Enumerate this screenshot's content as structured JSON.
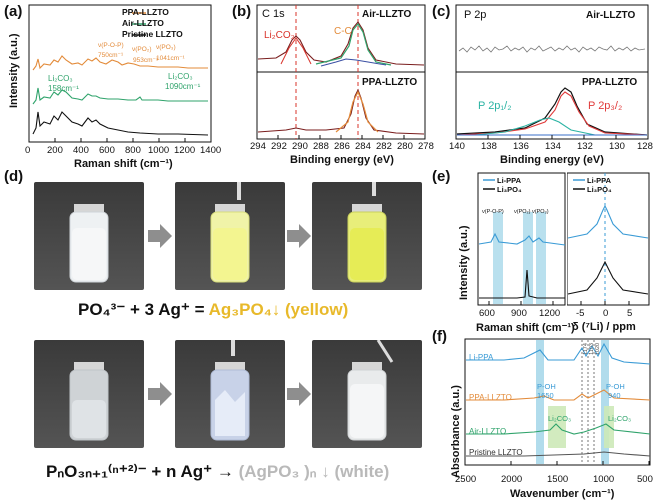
{
  "panel_labels": {
    "a": "(a)",
    "b": "(b)",
    "c": "(c)",
    "d": "(d)",
    "e": "(e)",
    "f": "(f)"
  },
  "colors": {
    "ppa": "#e38b3a",
    "air": "#2fa36b",
    "pristine": "#111111",
    "li_ppa": "#3a9bd6",
    "dash_red": "#d9342b",
    "p32": "#e03a3a",
    "p12": "#2bb3a3",
    "highlight": "#a8d8ea",
    "yellow_text": "#e8b92a",
    "white_text": "#b9b9b9"
  },
  "panel_a": {
    "legend": [
      "PPA-LLZTO",
      "Air-LLZTO",
      "Pristine LLZTO"
    ],
    "ylabel": "Intensity (a.u.)",
    "xlabel": "Raman shift (cm⁻¹)",
    "xticks": [
      "0",
      "200",
      "400",
      "600",
      "800",
      "1000",
      "1200",
      "1400"
    ],
    "annotations": {
      "v_p_o_p": "ν(P-O-P)",
      "v_p_o_p_val": "750cm⁻¹",
      "v_po2_val": "953cm⁻¹",
      "v_po2_label": "ν(PO₂)",
      "v_po3_val": "1041cm⁻¹",
      "v_po3_label": "ν(PO₃)",
      "li2co3_a": "Li₂CO₃",
      "li2co3_a_val": "158cm⁻¹",
      "li2co3_b": "Li₂CO₃",
      "li2co3_b_val": "1090cm⁻¹"
    }
  },
  "panel_b": {
    "title": "C 1s",
    "top_label": "Air-LLZTO",
    "bottom_label": "PPA-LLZTO",
    "li2co3": "Li₂CO₃",
    "cc": "C-C",
    "xlabel": "Binding energy (eV)",
    "xticks": [
      "294",
      "292",
      "290",
      "288",
      "286",
      "284",
      "282",
      "280",
      "278"
    ]
  },
  "panel_c": {
    "title": "P 2p",
    "top_label": "Air-LLZTO",
    "bottom_label": "PPA-LLZTO",
    "p12": "P 2p₁/₂",
    "p32": "P 2p₃/₂",
    "xticks": [
      "140",
      "138",
      "136",
      "134",
      "132",
      "130",
      "128"
    ]
  },
  "panel_d": {
    "eq1_left": "PO₄³⁻ + 3 Ag⁺ = ",
    "eq1_right": "Ag₃PO₄↓ (yellow)",
    "eq2_left": "PₙO₃ₙ₊₁⁽ⁿ⁺²⁾⁻ + n Ag⁺ → ",
    "eq2_right": "(AgPO₃ )ₙ ↓ (white)"
  },
  "panel_e": {
    "legend_left": [
      "Li-PPA",
      "Li₃PO₄"
    ],
    "legend_right": [
      "Li-PPA",
      "Li₃PO₄"
    ],
    "ylabel": "Intensity (a.u.)",
    "xlabel_left": "Raman shift (cm⁻¹)",
    "xlabel_right": "δ (⁷Li) / ppm",
    "xticks_left": [
      "600",
      "900",
      "1200"
    ],
    "xticks_right": [
      "-5",
      "0",
      "5"
    ],
    "peak_labels": [
      "ν(P-O-P)",
      "ν(PO₂)",
      "ν(PO₃)"
    ]
  },
  "panel_f": {
    "ylabel": "Absorbance (a.u.)",
    "xlabel": "Wavenumber (cm⁻¹)",
    "xticks": [
      "2500",
      "2000",
      "1500",
      "1000",
      "500"
    ],
    "series": [
      "Li-PPA",
      "PPA-LLZTO",
      "Air-LLZTO",
      "Pristine LLZTO"
    ],
    "poh1": "P-OH",
    "poh1_val": "1650",
    "poh2": "P-OH",
    "poh2_val": "940",
    "li2co3_1": "Li₂CO₃",
    "li2co3_2": "Li₂CO₃",
    "vert_labels": [
      "1174",
      "1103",
      "1020"
    ]
  }
}
